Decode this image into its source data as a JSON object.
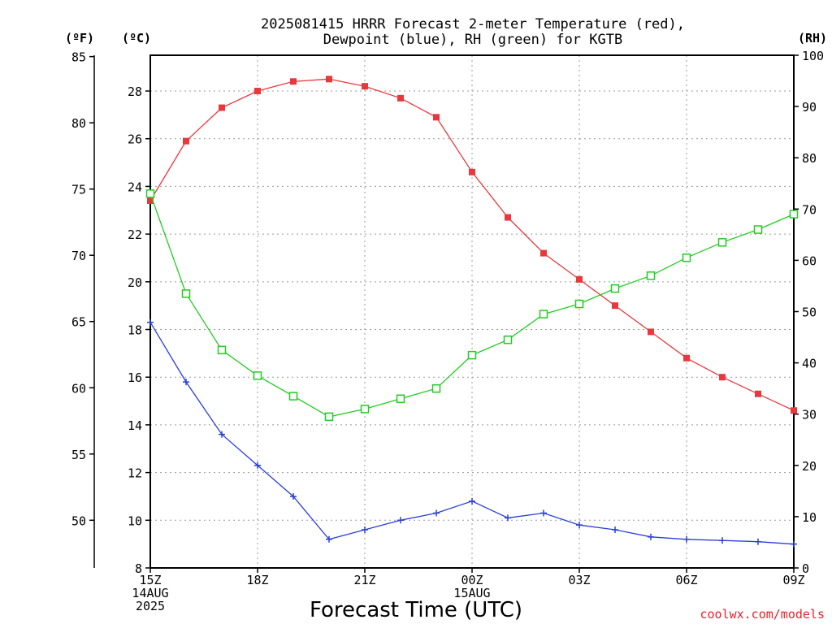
{
  "chart_data": {
    "type": "line",
    "title": "2025081415 HRRR Forecast 2-meter Temperature (red),",
    "subtitle": "Dewpoint (blue), RH (green) for KGTB",
    "xlabel": "Forecast Time (UTC)",
    "credit": "coolwx.com/models",
    "left_outer_unit": "(ºF)",
    "left_inner_unit": "(ºC)",
    "right_unit": "(RH)",
    "x_hours": [
      0,
      1,
      2,
      3,
      4,
      5,
      6,
      7,
      8,
      9,
      10,
      11,
      12,
      13,
      14,
      15,
      16,
      17,
      18
    ],
    "x_ticks": [
      {
        "hour": 0,
        "lines": [
          "15Z",
          "14AUG",
          "2025"
        ]
      },
      {
        "hour": 3,
        "lines": [
          "18Z"
        ]
      },
      {
        "hour": 6,
        "lines": [
          "21Z"
        ]
      },
      {
        "hour": 9,
        "lines": [
          "00Z",
          "15AUG"
        ]
      },
      {
        "hour": 12,
        "lines": [
          "03Z"
        ]
      },
      {
        "hour": 15,
        "lines": [
          "06Z"
        ]
      },
      {
        "hour": 18,
        "lines": [
          "09Z"
        ]
      }
    ],
    "xlim": [
      0,
      18
    ],
    "celsius_axis": {
      "range": [
        8,
        29.5
      ],
      "ticks": [
        8,
        10,
        12,
        14,
        16,
        18,
        20,
        22,
        24,
        26,
        28
      ]
    },
    "fahrenheit_axis": {
      "ticks": [
        50,
        55,
        60,
        65,
        70,
        75,
        80,
        85
      ]
    },
    "rh_axis": {
      "range": [
        0,
        100
      ],
      "ticks": [
        0,
        10,
        20,
        30,
        40,
        50,
        60,
        70,
        80,
        90,
        100
      ]
    },
    "grid": true,
    "series": [
      {
        "name": "Temperature",
        "units": "C",
        "color": "#e8383d",
        "marker": "filled-square",
        "values": [
          23.4,
          25.9,
          27.3,
          28.0,
          28.4,
          28.5,
          28.2,
          27.7,
          26.9,
          24.6,
          22.7,
          21.2,
          20.1,
          19.0,
          17.9,
          16.8,
          16.0,
          15.3,
          14.6
        ]
      },
      {
        "name": "Dewpoint",
        "units": "C",
        "color": "#2a3fd8",
        "marker": "plus",
        "values": [
          18.3,
          15.8,
          13.6,
          12.3,
          11.0,
          9.2,
          9.6,
          10.0,
          10.3,
          10.8,
          10.1,
          10.3,
          9.8,
          9.6,
          9.3,
          9.2,
          9.15,
          9.1,
          9.0
        ]
      },
      {
        "name": "RH",
        "units": "%",
        "color": "#22cc22",
        "marker": "open-square",
        "values": [
          73,
          53.5,
          42.5,
          37.5,
          33.5,
          29.5,
          31,
          33,
          35,
          41.5,
          44.5,
          49.5,
          51.5,
          54.5,
          57,
          60.5,
          63.5,
          66,
          69
        ]
      }
    ]
  }
}
